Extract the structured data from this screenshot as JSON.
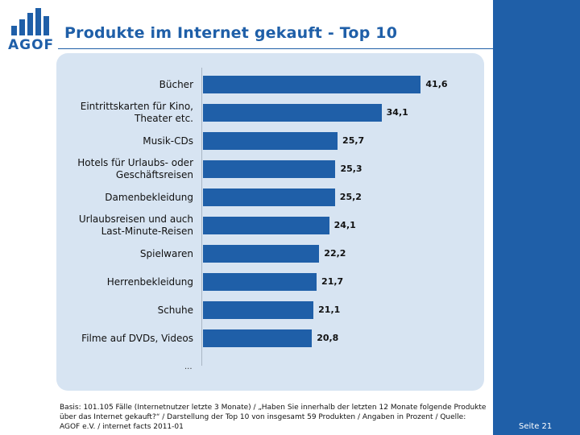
{
  "logo": {
    "text": "AGOF"
  },
  "header": {
    "title": "Produkte im Internet gekauft - Top 10"
  },
  "chart_data": {
    "type": "bar",
    "orientation": "horizontal",
    "categories": [
      "Bücher",
      "Eintrittskarten für Kino,\nTheater etc.",
      "Musik-CDs",
      "Hotels für Urlaubs- oder\nGeschäftsreisen",
      "Damenbekleidung",
      "Urlaubsreisen und auch\nLast-Minute-Reisen",
      "Spielwaren",
      "Herrenbekleidung",
      "Schuhe",
      "Filme auf DVDs, Videos"
    ],
    "values": [
      41.6,
      34.1,
      25.7,
      25.3,
      25.2,
      24.1,
      22.2,
      21.7,
      21.1,
      20.8
    ],
    "value_labels": [
      "41,6",
      "34,1",
      "25,7",
      "25,3",
      "25,2",
      "24,1",
      "22,2",
      "21,7",
      "21,1",
      "20,8"
    ],
    "xlim": [
      0,
      50
    ],
    "more_marker": "...",
    "bar_color": "#1f5fa8"
  },
  "footer": {
    "note": "Basis: 101.105 Fälle (Internetnutzer letzte 3 Monate) / „Haben Sie innerhalb der letzten 12 Monate folgende Produkte über das Internet gekauft?“ / Darstellung der Top 10 von insgesamt 59 Produkten / Angaben in Prozent / Quelle: AGOF e.V. / internet facts 2011-01",
    "page": "Seite 21"
  }
}
